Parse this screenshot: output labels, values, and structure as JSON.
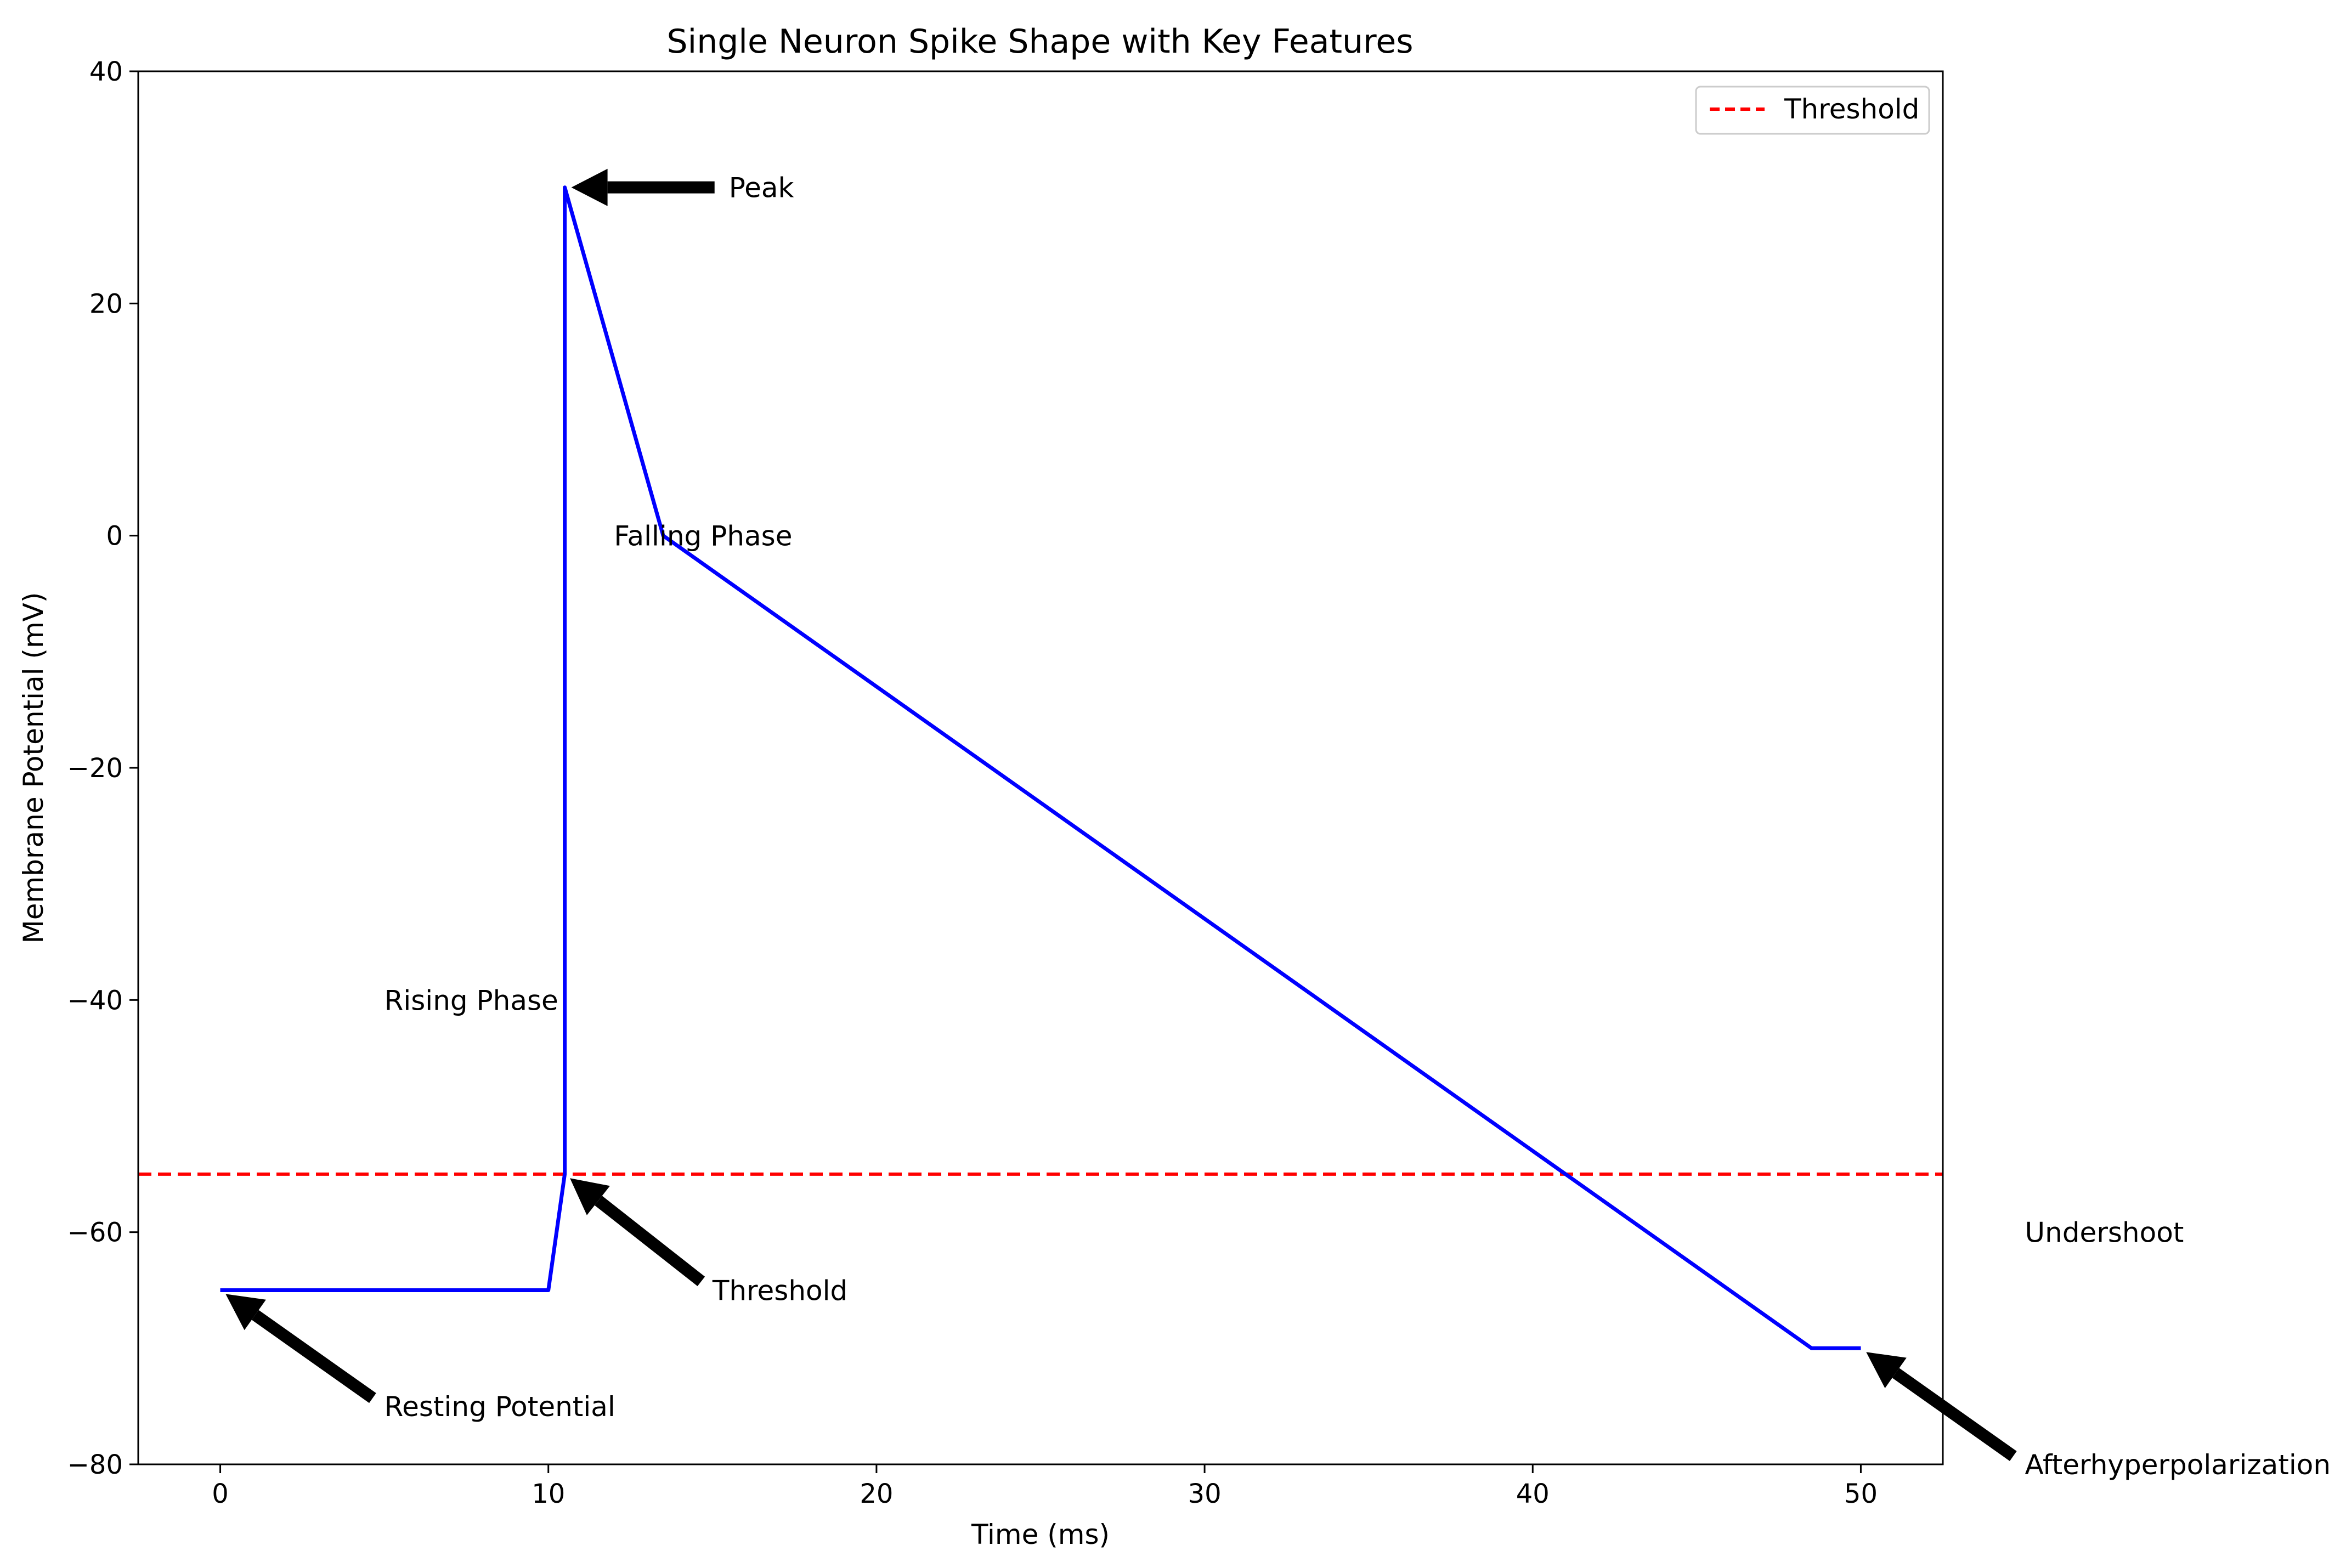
{
  "chart_data": {
    "type": "line",
    "title": "Single Neuron Spike Shape with Key Features",
    "xlabel": "Time (ms)",
    "ylabel": "Membrane Potential (mV)",
    "xlim": [
      -2.5,
      52.5
    ],
    "ylim": [
      -80,
      40
    ],
    "xticks": [
      0,
      10,
      20,
      30,
      40,
      50
    ],
    "yticks": [
      -80,
      -60,
      -40,
      -20,
      0,
      20,
      40
    ],
    "xtick_labels": [
      "0",
      "10",
      "20",
      "30",
      "40",
      "50"
    ],
    "ytick_labels": [
      "−80",
      "−60",
      "−40",
      "−20",
      "0",
      "20",
      "40"
    ],
    "grid": false,
    "legend_position": "upper right",
    "series": [
      {
        "color": "#0000ff",
        "x": [
          0,
          10,
          10.5,
          10.5,
          13.5,
          48.5,
          50
        ],
        "y": [
          -65,
          -65,
          -55,
          30,
          0,
          -70,
          -70
        ]
      }
    ],
    "hlines": [
      {
        "name": "Threshold",
        "y": -55,
        "color": "#ff0000",
        "style": "dashed"
      }
    ],
    "legend": [
      {
        "label": "Threshold",
        "color": "#ff0000",
        "style": "dashed"
      }
    ],
    "annotations": [
      {
        "text": "Peak",
        "point": [
          10.5,
          30
        ],
        "text_pos": [
          15.5,
          30
        ],
        "arrow": true
      },
      {
        "text": "Threshold",
        "point": [
          10.5,
          -55
        ],
        "text_pos": [
          15,
          -65
        ],
        "arrow": true
      },
      {
        "text": "Resting Potential",
        "point": [
          0,
          -65
        ],
        "text_pos": [
          5,
          -75
        ],
        "arrow": true
      },
      {
        "text": "Afterhyperpolarization",
        "point": [
          50,
          -70
        ],
        "text_pos": [
          55,
          -80
        ],
        "arrow": true
      },
      {
        "text": "Rising Phase",
        "text_pos": [
          5,
          -40
        ],
        "arrow": false
      },
      {
        "text": "Falling Phase",
        "text_pos": [
          12,
          0
        ],
        "arrow": false
      },
      {
        "text": "Undershoot",
        "text_pos": [
          55,
          -60
        ],
        "arrow": false
      }
    ]
  }
}
